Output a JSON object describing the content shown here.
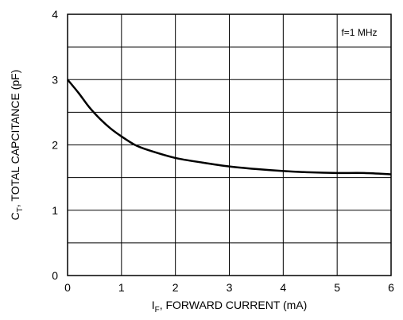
{
  "chart_data": {
    "type": "line",
    "title": "",
    "annotation": "f=1 MHz",
    "xlabel": {
      "main": "I",
      "sub": "F",
      "rest": ", FORWARD CURRENT (mA)"
    },
    "ylabel": {
      "main": "C",
      "sub": "T",
      "rest": ", TOTAL CAPCITANCE (pF)"
    },
    "xlim": [
      0,
      6
    ],
    "ylim": [
      0,
      4
    ],
    "x_ticks": [
      "0",
      "1",
      "2",
      "3",
      "4",
      "5",
      "6"
    ],
    "y_ticks": [
      "0",
      "1",
      "2",
      "3",
      "4"
    ],
    "grid": true,
    "x_minor_per_major": 1,
    "y_minor_per_major": 2,
    "series": [
      {
        "x": [
          0,
          0.2,
          0.4,
          0.6,
          0.8,
          1.0,
          1.25,
          1.5,
          2.0,
          2.5,
          3.0,
          3.5,
          4.0,
          4.5,
          5.0,
          5.5,
          6.0
        ],
        "y": [
          3.0,
          2.8,
          2.58,
          2.4,
          2.25,
          2.13,
          2.0,
          1.92,
          1.8,
          1.73,
          1.67,
          1.63,
          1.6,
          1.58,
          1.57,
          1.57,
          1.55
        ]
      }
    ]
  }
}
